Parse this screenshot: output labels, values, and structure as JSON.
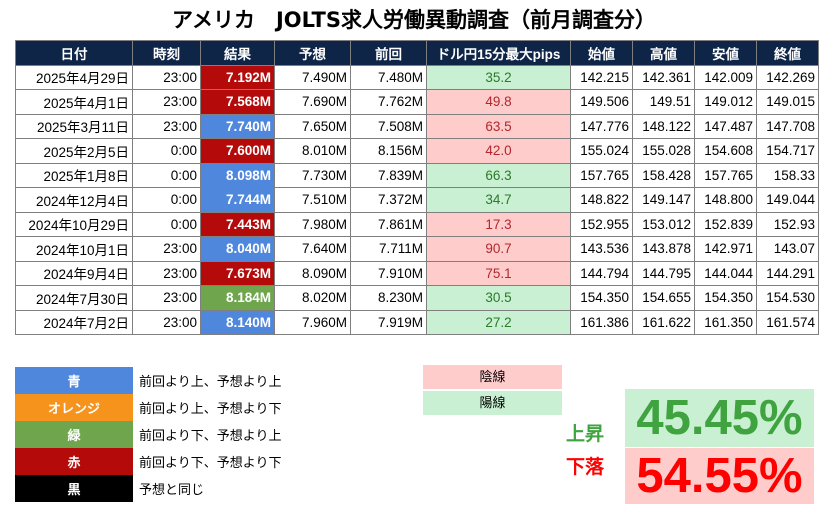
{
  "title": "アメリカ　JOLTS求人労働異動調査（前月調査分）",
  "headers": [
    "日付",
    "時刻",
    "結果",
    "予想",
    "前回",
    "ドル円15分最大pips",
    "始値",
    "高値",
    "安値",
    "終値"
  ],
  "colors": {
    "blue": "#4f87dc",
    "red": "#b40a0a",
    "green": "#6fa64d",
    "orange": "#f6931d",
    "black": "#000000",
    "pink": "#ffcccc",
    "lightgreen": "#c9f0d2",
    "header": "#0f2548"
  },
  "rows": [
    {
      "date": "2025年4月29日",
      "time": "23:00",
      "result": "7.192M",
      "result_color": "red",
      "forecast": "7.490M",
      "previous": "7.480M",
      "pips": "35.2",
      "pips_type": "up",
      "open": "142.215",
      "high": "142.361",
      "low": "142.009",
      "close": "142.269"
    },
    {
      "date": "2025年4月1日",
      "time": "23:00",
      "result": "7.568M",
      "result_color": "red",
      "forecast": "7.690M",
      "previous": "7.762M",
      "pips": "49.8",
      "pips_type": "down",
      "open": "149.506",
      "high": "149.51",
      "low": "149.012",
      "close": "149.015"
    },
    {
      "date": "2025年3月11日",
      "time": "23:00",
      "result": "7.740M",
      "result_color": "blue",
      "forecast": "7.650M",
      "previous": "7.508M",
      "pips": "63.5",
      "pips_type": "down",
      "open": "147.776",
      "high": "148.122",
      "low": "147.487",
      "close": "147.708"
    },
    {
      "date": "2025年2月5日",
      "time": "0:00",
      "result": "7.600M",
      "result_color": "red",
      "forecast": "8.010M",
      "previous": "8.156M",
      "pips": "42.0",
      "pips_type": "down",
      "open": "155.024",
      "high": "155.028",
      "low": "154.608",
      "close": "154.717"
    },
    {
      "date": "2025年1月8日",
      "time": "0:00",
      "result": "8.098M",
      "result_color": "blue",
      "forecast": "7.730M",
      "previous": "7.839M",
      "pips": "66.3",
      "pips_type": "up",
      "open": "157.765",
      "high": "158.428",
      "low": "157.765",
      "close": "158.33"
    },
    {
      "date": "2024年12月4日",
      "time": "0:00",
      "result": "7.744M",
      "result_color": "blue",
      "forecast": "7.510M",
      "previous": "7.372M",
      "pips": "34.7",
      "pips_type": "up",
      "open": "148.822",
      "high": "149.147",
      "low": "148.800",
      "close": "149.044"
    },
    {
      "date": "2024年10月29日",
      "time": "0:00",
      "result": "7.443M",
      "result_color": "red",
      "forecast": "7.980M",
      "previous": "7.861M",
      "pips": "17.3",
      "pips_type": "down",
      "open": "152.955",
      "high": "153.012",
      "low": "152.839",
      "close": "152.93"
    },
    {
      "date": "2024年10月1日",
      "time": "23:00",
      "result": "8.040M",
      "result_color": "blue",
      "forecast": "7.640M",
      "previous": "7.711M",
      "pips": "90.7",
      "pips_type": "down",
      "open": "143.536",
      "high": "143.878",
      "low": "142.971",
      "close": "143.07"
    },
    {
      "date": "2024年9月4日",
      "time": "23:00",
      "result": "7.673M",
      "result_color": "red",
      "forecast": "8.090M",
      "previous": "7.910M",
      "pips": "75.1",
      "pips_type": "down",
      "open": "144.794",
      "high": "144.795",
      "low": "144.044",
      "close": "144.291"
    },
    {
      "date": "2024年7月30日",
      "time": "23:00",
      "result": "8.184M",
      "result_color": "green",
      "forecast": "8.020M",
      "previous": "8.230M",
      "pips": "30.5",
      "pips_type": "up",
      "open": "154.350",
      "high": "154.655",
      "low": "154.350",
      "close": "154.530"
    },
    {
      "date": "2024年7月2日",
      "time": "23:00",
      "result": "8.140M",
      "result_color": "blue",
      "forecast": "7.960M",
      "previous": "7.919M",
      "pips": "27.2",
      "pips_type": "up",
      "open": "161.386",
      "high": "161.622",
      "low": "161.350",
      "close": "161.574"
    }
  ],
  "legend": [
    {
      "label": "青",
      "color": "blue",
      "text": "前回より上、予想より上"
    },
    {
      "label": "オレンジ",
      "color": "orange",
      "text": "前回より上、予想より下"
    },
    {
      "label": "緑",
      "color": "green",
      "text": "前回より下、予想より上"
    },
    {
      "label": "赤",
      "color": "red",
      "text": "前回より下、予想より下"
    },
    {
      "label": "黒",
      "color": "black",
      "text": "予想と同じ"
    }
  ],
  "candles": {
    "bearish": "陰線",
    "bullish": "陽線"
  },
  "stats": {
    "up_label": "上昇",
    "up_pct": "45.45%",
    "down_label": "下落",
    "down_pct": "54.55%",
    "up_color": "#3fa33f",
    "down_color": "#ff0000"
  }
}
